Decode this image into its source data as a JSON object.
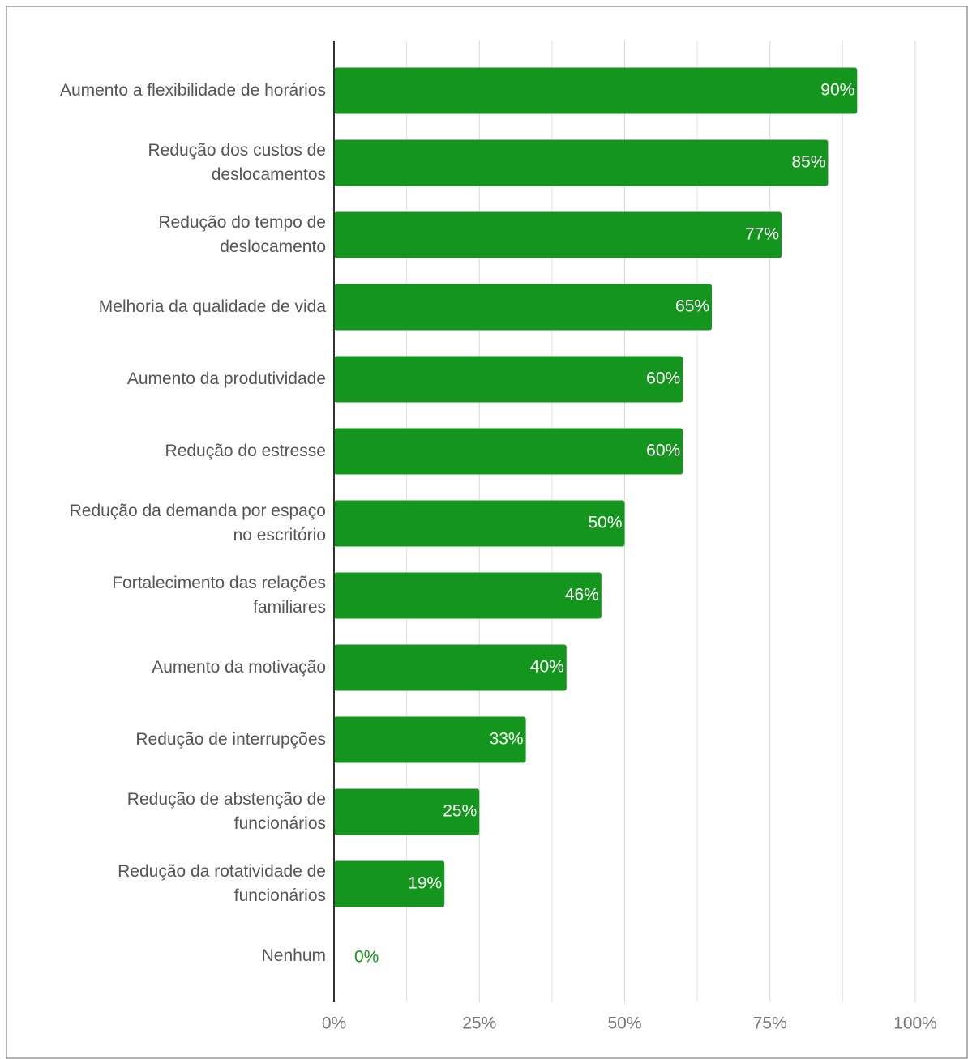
{
  "chart_data": {
    "type": "bar",
    "orientation": "horizontal",
    "categories": [
      "Aumento a flexibilidade de horários",
      "Redução dos custos de deslocamentos",
      "Redução do tempo de deslocamento",
      "Melhoria da qualidade de vida",
      "Aumento da produtividade",
      "Redução do estresse",
      "Redução da demanda por espaço no escritório",
      "Fortalecimento das relações familiares",
      "Aumento da motivação",
      "Redução de interrupções",
      "Redução de abstenção de funcionários",
      "Redução da rotatividade de funcionários",
      "Nenhum"
    ],
    "values": [
      90,
      85,
      77,
      65,
      60,
      60,
      50,
      46,
      40,
      33,
      25,
      19,
      0
    ],
    "value_labels": [
      "90%",
      "85%",
      "77%",
      "65%",
      "60%",
      "60%",
      "50%",
      "46%",
      "40%",
      "33%",
      "25%",
      "19%",
      "0%"
    ],
    "color": "#14961e",
    "xlim": [
      0,
      100
    ],
    "xticks": [
      {
        "value": 0,
        "label": "0%"
      },
      {
        "value": 25,
        "label": "25%"
      },
      {
        "value": 50,
        "label": "50%"
      },
      {
        "value": 75,
        "label": "75%"
      },
      {
        "value": 100,
        "label": "100%"
      }
    ],
    "minor_xticks": [
      12.5,
      37.5,
      62.5,
      87.5
    ],
    "grid": true
  }
}
